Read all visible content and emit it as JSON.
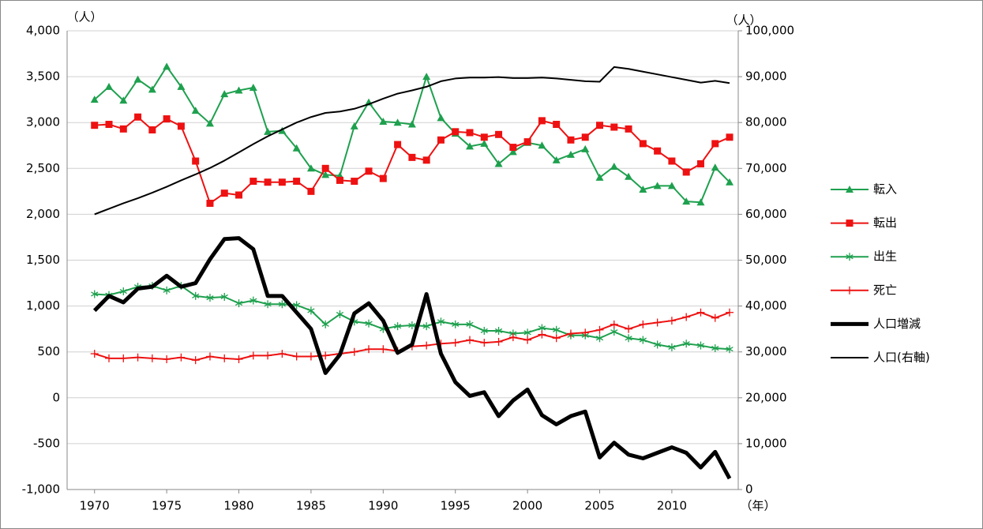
{
  "chart_data": {
    "type": "line",
    "y_unit": "（人）",
    "y2_unit": "（人）",
    "x_unit": "（年）",
    "x": [
      1970,
      1971,
      1972,
      1973,
      1974,
      1975,
      1976,
      1977,
      1978,
      1979,
      1980,
      1981,
      1982,
      1983,
      1984,
      1985,
      1986,
      1987,
      1988,
      1989,
      1990,
      1991,
      1992,
      1993,
      1994,
      1995,
      1996,
      1997,
      1998,
      1999,
      2000,
      2001,
      2002,
      2003,
      2004,
      2005,
      2006,
      2007,
      2008,
      2009,
      2010,
      2011,
      2012,
      2013,
      2014
    ],
    "xlim": [
      1968.1,
      2014.6
    ],
    "xticks": [
      1970,
      1975,
      1980,
      1985,
      1990,
      1995,
      2000,
      2005,
      2010
    ],
    "ylim": [
      -1000,
      4000
    ],
    "yticks": [
      {
        "value": -1000,
        "label": "-1,000"
      },
      -500,
      0,
      500,
      {
        "value": 1000,
        "label": "1,000"
      },
      {
        "value": 1500,
        "label": "1,500"
      },
      {
        "value": 2000,
        "label": "2,000"
      },
      {
        "value": 2500,
        "label": "2,500"
      },
      {
        "value": 3000,
        "label": "3,000"
      },
      {
        "value": 3500,
        "label": "3,500"
      },
      {
        "value": 4000,
        "label": "4,000"
      }
    ],
    "y2lim": [
      0,
      100000
    ],
    "y2ticks": [
      0,
      {
        "value": 10000,
        "label": "10,000"
      },
      {
        "value": 20000,
        "label": "20,000"
      },
      {
        "value": 30000,
        "label": "30,000"
      },
      {
        "value": 40000,
        "label": "40,000"
      },
      {
        "value": 50000,
        "label": "50,000"
      },
      {
        "value": 60000,
        "label": "60,000"
      },
      {
        "value": 70000,
        "label": "70,000"
      },
      {
        "value": 80000,
        "label": "80,000"
      },
      {
        "value": 90000,
        "label": "90,000"
      },
      {
        "value": 100000,
        "label": "100,000"
      }
    ],
    "grid": true,
    "legend": "right",
    "series": [
      {
        "name": "転入",
        "color": "#1ea04e",
        "marker": "triangle",
        "line_width": 2,
        "values": [
          3250,
          3390,
          3240,
          3470,
          3360,
          3610,
          3390,
          3130,
          2990,
          3310,
          3350,
          3380,
          2900,
          2910,
          2720,
          2500,
          2430,
          2420,
          2960,
          3220,
          3010,
          3000,
          2980,
          3500,
          3050,
          2880,
          2740,
          2770,
          2550,
          2680,
          2780,
          2750,
          2590,
          2650,
          2710,
          2400,
          2520,
          2410,
          2270,
          2310,
          2310,
          2140,
          2130,
          2510,
          2350
        ]
      },
      {
        "name": "転出",
        "color": "#ee1111",
        "marker": "square",
        "line_width": 2,
        "values": [
          2970,
          2980,
          2930,
          3060,
          2920,
          3040,
          2960,
          2580,
          2120,
          2230,
          2210,
          2360,
          2350,
          2350,
          2360,
          2250,
          2500,
          2370,
          2360,
          2470,
          2390,
          2760,
          2620,
          2590,
          2810,
          2900,
          2890,
          2840,
          2870,
          2730,
          2790,
          3020,
          2980,
          2810,
          2840,
          2970,
          2950,
          2930,
          2770,
          2690,
          2580,
          2460,
          2550,
          2770,
          2840
        ]
      },
      {
        "name": "出生",
        "color": "#1ea04e",
        "marker": "star",
        "line_width": 2,
        "values": [
          1130,
          1120,
          1160,
          1210,
          1220,
          1170,
          1220,
          1110,
          1090,
          1100,
          1030,
          1060,
          1020,
          1020,
          1010,
          950,
          800,
          910,
          830,
          810,
          750,
          780,
          790,
          780,
          830,
          800,
          800,
          730,
          730,
          700,
          710,
          760,
          740,
          680,
          680,
          650,
          720,
          650,
          630,
          580,
          550,
          590,
          570,
          540,
          530
        ]
      },
      {
        "name": "死亡",
        "color": "#ee1111",
        "marker": "plus",
        "line_width": 2,
        "values": [
          480,
          430,
          430,
          440,
          430,
          420,
          440,
          410,
          450,
          430,
          420,
          460,
          460,
          480,
          450,
          450,
          460,
          480,
          500,
          530,
          530,
          510,
          560,
          570,
          590,
          600,
          630,
          600,
          610,
          660,
          630,
          690,
          650,
          700,
          710,
          740,
          800,
          750,
          800,
          820,
          840,
          880,
          930,
          870,
          930
        ]
      },
      {
        "name": "人口増減",
        "color": "#000000",
        "line_width": 5,
        "values": [
          950,
          1110,
          1040,
          1190,
          1210,
          1330,
          1210,
          1250,
          1510,
          1730,
          1740,
          1620,
          1110,
          1110,
          930,
          750,
          270,
          470,
          920,
          1030,
          840,
          490,
          580,
          1130,
          480,
          170,
          20,
          60,
          -200,
          -30,
          90,
          -190,
          -290,
          -200,
          -150,
          -650,
          -490,
          -620,
          -660,
          -600,
          -540,
          -600,
          -760,
          -590,
          -880
        ]
      },
      {
        "name": "人口(右軸)",
        "color": "#000000",
        "line_width": 2,
        "axis": "y2",
        "values": [
          60000,
          61200,
          62400,
          63500,
          64700,
          66000,
          67400,
          68700,
          70100,
          71700,
          73500,
          75300,
          77000,
          78500,
          80000,
          81200,
          82100,
          82400,
          83000,
          84000,
          85200,
          86300,
          87000,
          87800,
          89000,
          89600,
          89800,
          89800,
          89900,
          89700,
          89700,
          89800,
          89600,
          89300,
          89000,
          88900,
          92100,
          91700,
          91100,
          90500,
          89900,
          89300,
          88700,
          89100,
          88600
        ]
      }
    ]
  }
}
